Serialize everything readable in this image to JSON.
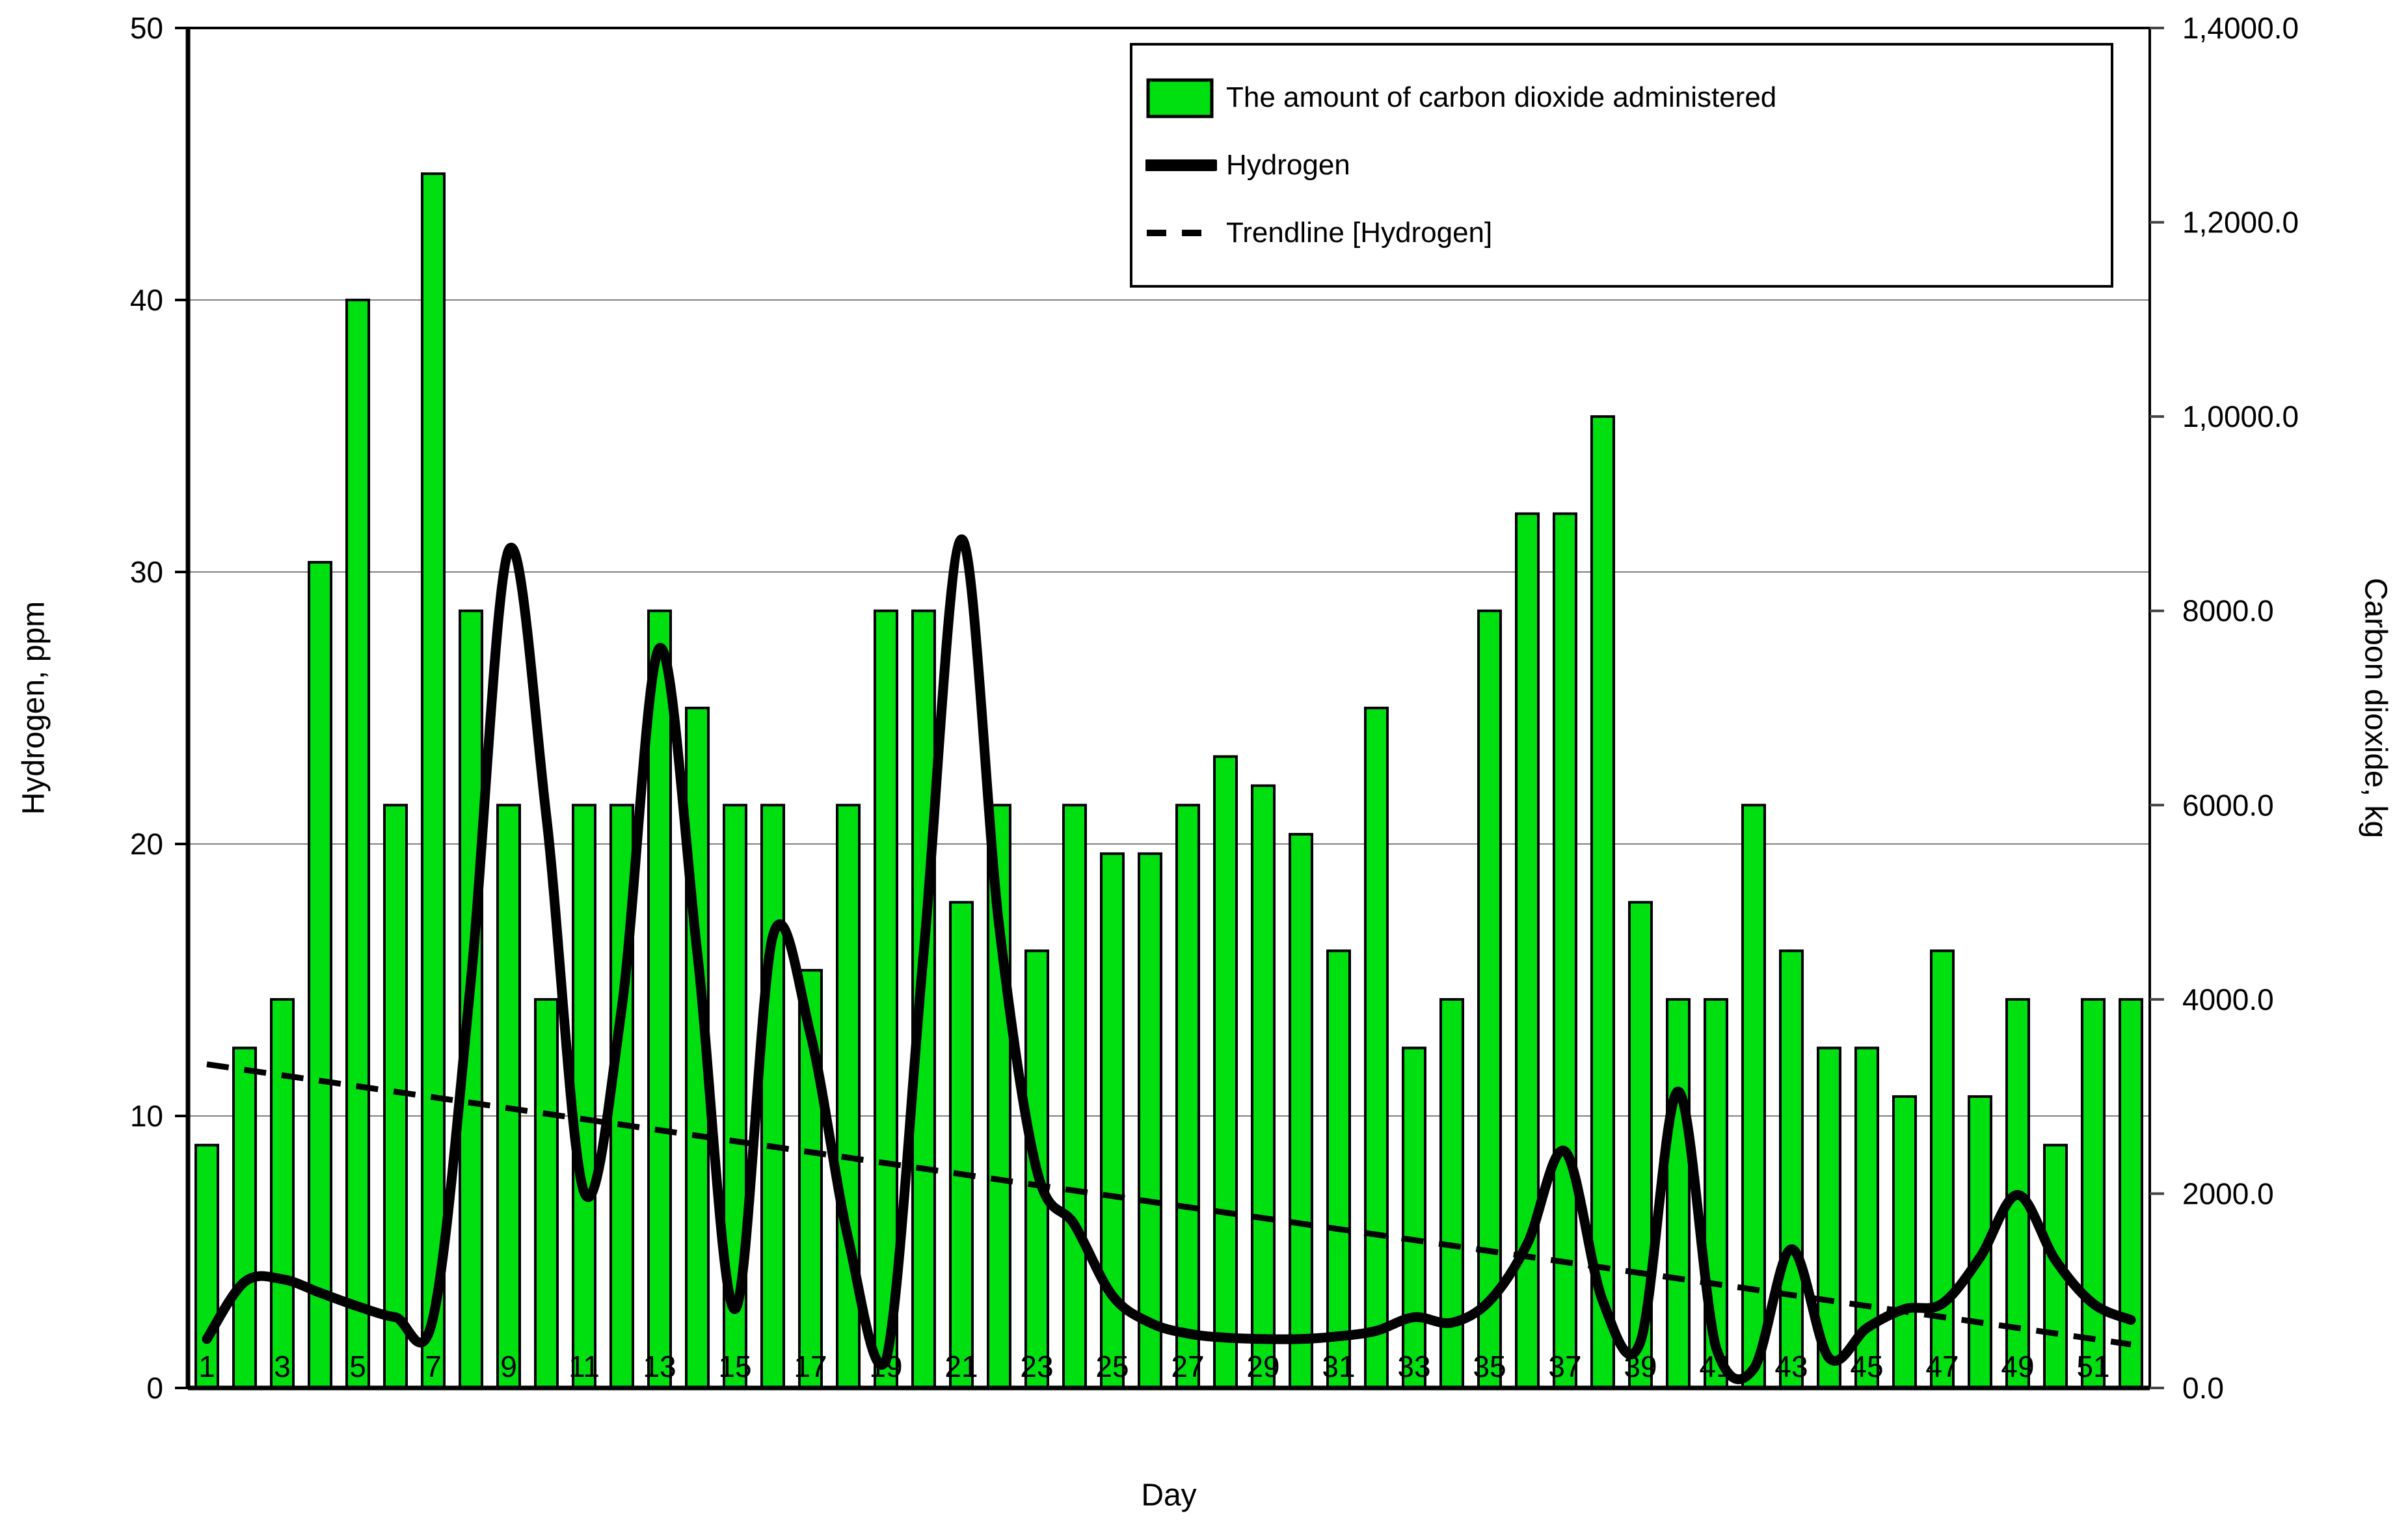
{
  "titles": {
    "y_left": "Hydrogen, ppm",
    "y_right": "Carbon dioxide, kg",
    "x": "Day"
  },
  "legend": {
    "items": [
      {
        "label": "The amount of carbon dioxide administered",
        "swatch": "bar"
      },
      {
        "label": "Hydrogen",
        "swatch": "solid-line"
      },
      {
        "label": "Trendline [Hydrogen]",
        "swatch": "dashed-line"
      }
    ]
  },
  "colors": {
    "bar_fill": "#00e011",
    "bar_stroke": "#000000",
    "line": "#000000",
    "trendline": "#000000",
    "gridline": "#808080",
    "frame": "#000000"
  },
  "chart_data": {
    "type": "combo-bar-line",
    "categories": [
      1,
      2,
      3,
      4,
      5,
      6,
      7,
      8,
      9,
      10,
      11,
      12,
      13,
      14,
      15,
      16,
      17,
      18,
      19,
      20,
      21,
      22,
      23,
      24,
      25,
      26,
      27,
      28,
      29,
      30,
      31,
      32,
      33,
      34,
      35,
      36,
      37,
      38,
      39,
      40,
      41,
      42,
      43,
      44,
      45,
      46,
      47,
      48,
      49,
      50,
      51,
      52
    ],
    "series": [
      {
        "name": "The amount of carbon dioxide administered",
        "type": "bar",
        "axis": "right",
        "values": [
          2500,
          3500,
          4000,
          8500,
          11200,
          6000,
          12500,
          8000,
          6000,
          4000,
          6000,
          6000,
          8000,
          7000,
          6000,
          6000,
          4300,
          6000,
          8000,
          8000,
          5000,
          6000,
          4500,
          6000,
          5500,
          5500,
          6000,
          6500,
          6200,
          5700,
          4500,
          7000,
          3500,
          4000,
          8000,
          9000,
          9000,
          10000,
          5000,
          4000,
          4000,
          6000,
          4500,
          3500,
          3500,
          3000,
          4500,
          3000,
          4000,
          2500,
          4000,
          4000
        ]
      },
      {
        "name": "Hydrogen",
        "type": "line",
        "axis": "left",
        "values": [
          1.8,
          3.9,
          4.0,
          3.5,
          3.0,
          2.6,
          2.6,
          15.0,
          30.8,
          21.0,
          7.2,
          14.0,
          27.2,
          16.0,
          2.9,
          16.6,
          13.0,
          5.5,
          1.0,
          16.0,
          31.2,
          17.0,
          8.0,
          6.0,
          3.4,
          2.4,
          2.0,
          1.85,
          1.8,
          1.8,
          1.9,
          2.1,
          2.6,
          2.4,
          3.2,
          5.3,
          8.7,
          3.2,
          1.7,
          10.9,
          1.5,
          0.7,
          5.1,
          1.1,
          2.2,
          2.9,
          3.1,
          4.8,
          7.1,
          4.7,
          3.1,
          2.5
        ]
      },
      {
        "name": "Trendline [Hydrogen]",
        "type": "trendline",
        "axis": "left",
        "start_day": 1,
        "start_value": 11.9,
        "end_day": 52,
        "end_value": 1.6
      }
    ],
    "left_axis": {
      "label": "Hydrogen, ppm",
      "min": 0,
      "max": 50,
      "step": 10,
      "tick_labels": [
        "0",
        "10",
        "20",
        "30",
        "40",
        "50"
      ]
    },
    "right_axis": {
      "label": "Carbon dioxide, kg",
      "min": 0,
      "max": 14000,
      "step": 2000,
      "tick_labels": [
        "0.0",
        "2000.0",
        "4000.0",
        "6000.0",
        "8000.0",
        "1,0000.0",
        "1,2000.0",
        "1,4000.0"
      ]
    },
    "x_axis": {
      "label": "Day",
      "tick_labels": [
        "1",
        "3",
        "5",
        "7",
        "9",
        "11",
        "13",
        "15",
        "17",
        "19",
        "21",
        "23",
        "25",
        "27",
        "29",
        "31",
        "33",
        "35",
        "37",
        "39",
        "41",
        "43",
        "45",
        "47",
        "49",
        "51"
      ]
    },
    "grid": "horizontal-only",
    "legend_position": "top-right-inside"
  }
}
